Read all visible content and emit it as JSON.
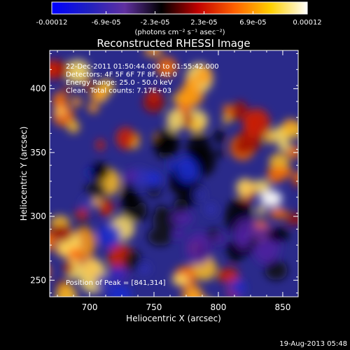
{
  "colorbar": {
    "tick_labels": [
      "-0.00012",
      "-6.9e-05",
      "-2.3e-05",
      "2.3e-05",
      "6.9e-05",
      "0.00012"
    ],
    "tick_values": [
      -0.00012,
      -6.9e-05,
      -2.3e-05,
      2.3e-05,
      6.9e-05,
      0.00012
    ],
    "unit_label": "(photons cm⁻² s⁻¹ asec⁻²)",
    "stops": [
      "#0000ff",
      "#2020c0",
      "#6030a0",
      "#000000",
      "#c00000",
      "#ff6000",
      "#ffd000",
      "#ffffff"
    ]
  },
  "plot": {
    "title": "Reconstructed RHESSI Image",
    "xlabel": "Heliocentric X (arcsec)",
    "ylabel": "Heliocentric Y (arcsec)",
    "xticks": [
      "700",
      "750",
      "800",
      "850"
    ],
    "yticks": [
      "250",
      "300",
      "350",
      "400"
    ],
    "annotations": [
      "22-Dec-2011 01:50:44.000 to 01:55:42.000",
      "Detectors: 4F 5F 6F 7F 8F, Att 0",
      "Energy Range: 25.0 - 50.0 keV",
      "Clean.    Total counts: 7.17E+03"
    ],
    "peak_label": "Position of Peak = [841,314]"
  },
  "footer": {
    "timestamp": "19-Aug-2013 05:48"
  },
  "chart_data": {
    "type": "heatmap",
    "title": "Reconstructed RHESSI Image",
    "xlabel": "Heliocentric X (arcsec)",
    "ylabel": "Heliocentric Y (arcsec)",
    "xlim": [
      669,
      862
    ],
    "ylim": [
      237,
      430
    ],
    "colorbar_range": [
      -0.00012,
      0.00012
    ],
    "peak": [
      841,
      314
    ]
  }
}
